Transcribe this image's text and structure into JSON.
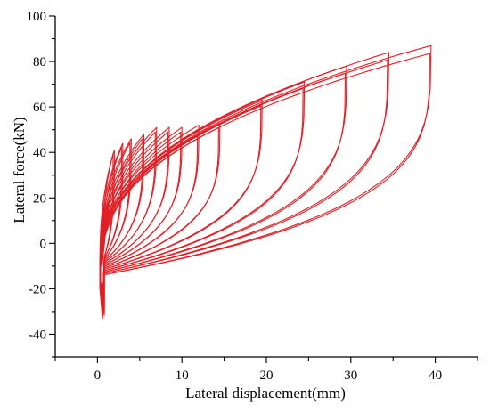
{
  "chart_data": {
    "type": "line",
    "title": "",
    "xlabel": "Lateral displacement(mm)",
    "ylabel": "Lateral force(kN)",
    "xlim": [
      -5,
      45
    ],
    "ylim": [
      -50,
      100
    ],
    "xticks": [
      0,
      10,
      20,
      30,
      40
    ],
    "yticks": [
      -40,
      -20,
      0,
      20,
      40,
      60,
      80,
      100
    ],
    "grid": false,
    "legend": "none",
    "line_color": "#e0141b",
    "series": [
      {
        "peak_displacement": 2,
        "peak_force": 41,
        "min_force": -26
      },
      {
        "peak_displacement": 3,
        "peak_force": 44,
        "min_force": -27
      },
      {
        "peak_displacement": 4,
        "peak_force": 46,
        "min_force": -28
      },
      {
        "peak_displacement": 5.5,
        "peak_force": 48,
        "min_force": -28
      },
      {
        "peak_displacement": 7,
        "peak_force": 51,
        "min_force": -29
      },
      {
        "peak_displacement": 8.5,
        "peak_force": 51,
        "min_force": -29
      },
      {
        "peak_displacement": 10,
        "peak_force": 51,
        "min_force": -30
      },
      {
        "peak_displacement": 12,
        "peak_force": 52,
        "min_force": -30
      },
      {
        "peak_displacement": 14.5,
        "peak_force": 53,
        "min_force": -31
      },
      {
        "peak_displacement": 19.5,
        "peak_force": 63,
        "min_force": -31
      },
      {
        "peak_displacement": 24.5,
        "peak_force": 71,
        "min_force": -32
      },
      {
        "peak_displacement": 29.5,
        "peak_force": 78,
        "min_force": -32
      },
      {
        "peak_displacement": 34.5,
        "peak_force": 84,
        "min_force": -33
      },
      {
        "peak_displacement": 39.5,
        "peak_force": 87,
        "min_force": -33
      }
    ]
  }
}
